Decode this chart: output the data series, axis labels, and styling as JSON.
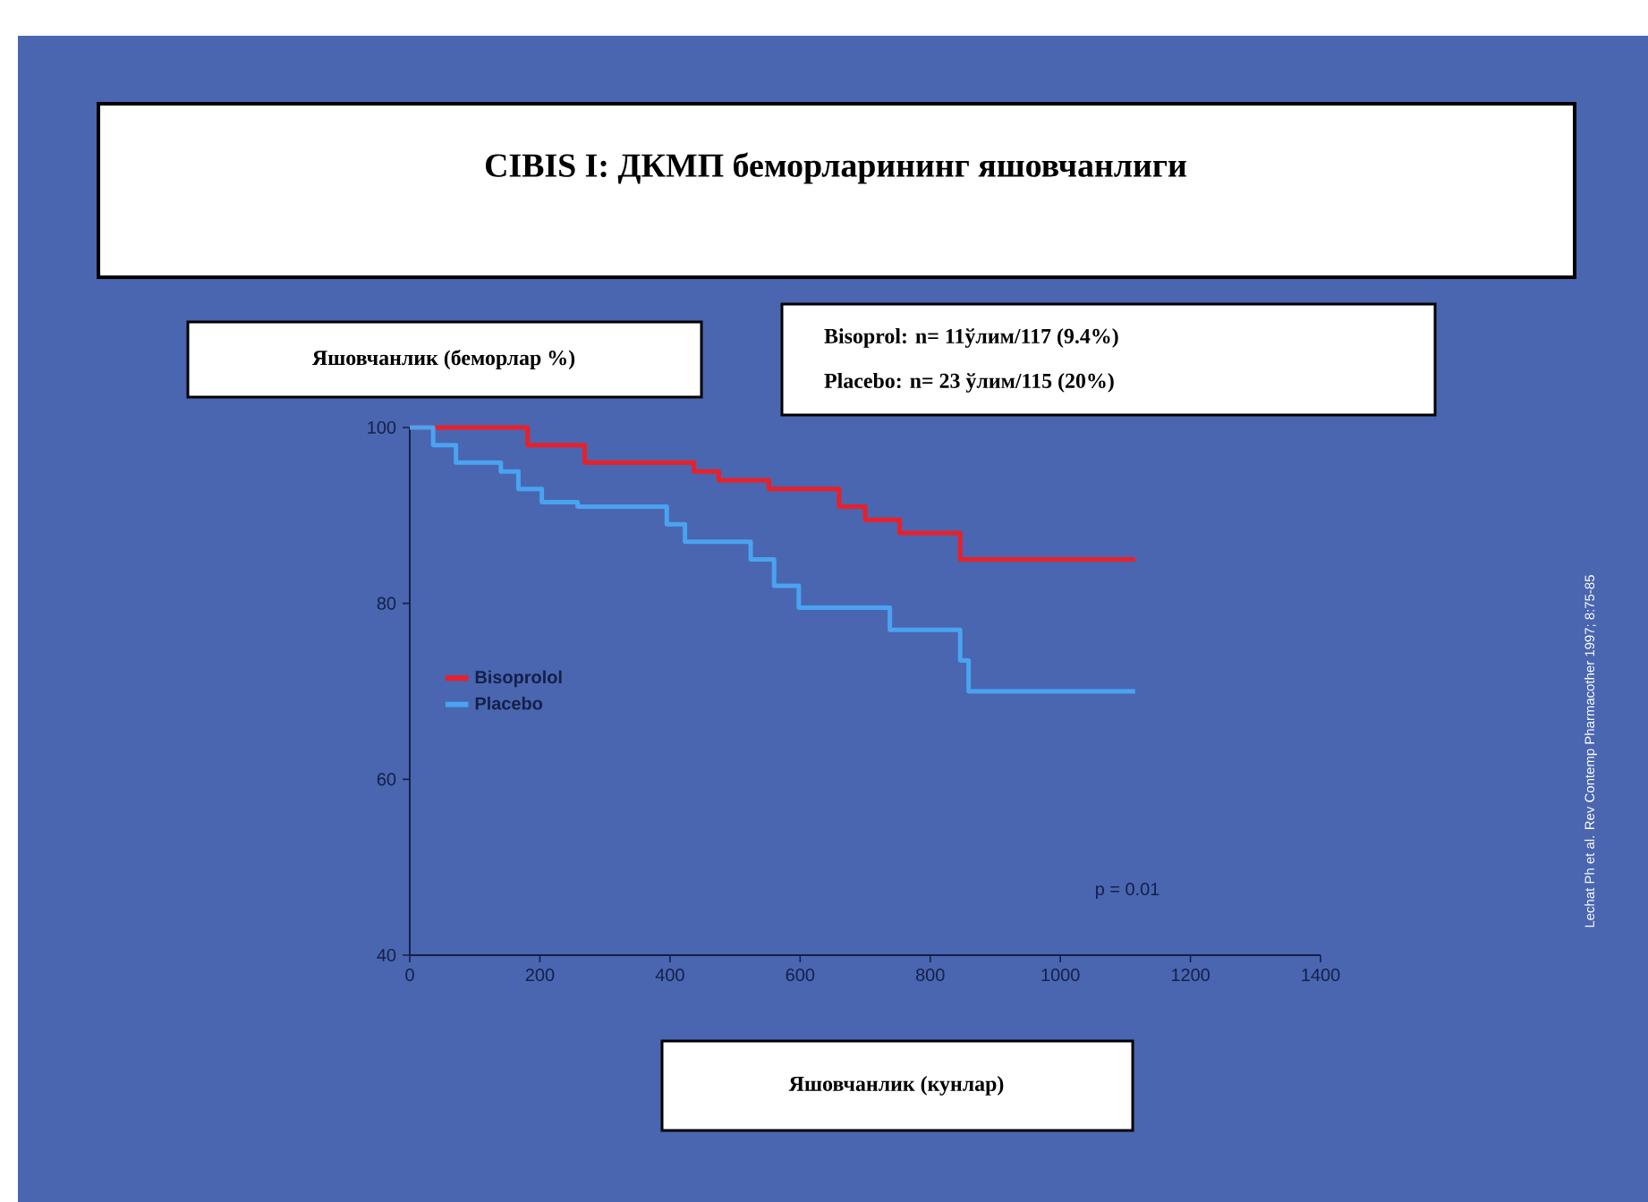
{
  "chart_data": {
    "type": "step",
    "title": "CIBIS I: ДКМП беморларининг яшовчанлиги",
    "xlabel": "Яшовчанлик  (кунлар)",
    "ylabel": "Яшовчанлик  (беморлар %)",
    "xlim": [
      0,
      1400
    ],
    "xticks": [
      0,
      200,
      400,
      600,
      800,
      1000,
      1200,
      1400
    ],
    "ylim": [
      40,
      100
    ],
    "yticks": [
      40,
      60,
      80,
      100
    ],
    "series": [
      {
        "name": "Bisoprolol",
        "color": "#e8202a",
        "x": [
          0,
          181,
          269,
          437,
          475,
          552,
          660,
          700,
          753,
          846,
          1115
        ],
        "values": [
          100,
          98,
          96,
          95,
          94,
          93,
          91,
          89.5,
          88,
          85,
          85
        ]
      },
      {
        "name": "Placebo",
        "color": "#4aa3f0",
        "x": [
          0,
          36,
          71,
          140,
          167,
          203,
          258,
          395,
          423,
          524,
          560,
          598,
          738,
          846,
          859,
          1115
        ],
        "values": [
          100,
          98,
          96,
          95,
          93,
          91.5,
          91,
          89,
          87,
          85,
          82,
          79.5,
          77,
          73.5,
          70,
          70
        ]
      }
    ],
    "legend": "left",
    "grid": false,
    "marker": "none",
    "line_style": "solid",
    "annotations": [
      "Bisoprol: n= 11ўлим/117 (9.4%)",
      "Placebo: n= 23 ўлим/115 (20%)",
      "p = 0.01",
      "Lechat Ph et al. Rev Contemp Pharmacother 1997; 8:75-85"
    ]
  }
}
